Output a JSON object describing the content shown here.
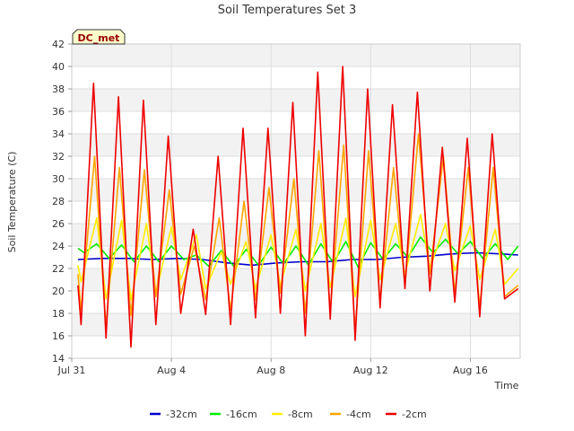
{
  "chart_data": {
    "type": "line",
    "title": "Soil Temperatures Set 3",
    "xlabel": "Time",
    "ylabel": "Soil Temperature (C)",
    "site_label": "DC_met",
    "ylim": [
      14,
      42
    ],
    "y_ticks": [
      14,
      16,
      18,
      20,
      22,
      24,
      26,
      28,
      30,
      32,
      34,
      36,
      38,
      40,
      42
    ],
    "x_range": [
      "2023-07-31",
      "2023-08-18"
    ],
    "x_ticks": [
      {
        "date": "2023-07-31",
        "label": "Jul 31"
      },
      {
        "date": "2023-08-04",
        "label": "Aug 4"
      },
      {
        "date": "2023-08-08",
        "label": "Aug 8"
      },
      {
        "date": "2023-08-12",
        "label": "Aug 12"
      },
      {
        "date": "2023-08-16",
        "label": "Aug 16"
      }
    ],
    "grid": true,
    "banded_background": true,
    "legend_position": "bottom",
    "colors": {
      "-32cm": "#0000cc",
      "-16cm": "#00ee00",
      "-8cm": "#ffee00",
      "-4cm": "#ffa500",
      "-2cm": "#ee0000"
    },
    "series": [
      {
        "name": "-32cm",
        "color": "#0000cc",
        "points": [
          [
            "2023-07-31T06:00",
            22.8
          ],
          [
            "2023-08-01T06:00",
            22.9
          ],
          [
            "2023-08-02T06:00",
            22.9
          ],
          [
            "2023-08-03T06:00",
            22.8
          ],
          [
            "2023-08-04T06:00",
            22.9
          ],
          [
            "2023-08-05T06:00",
            22.8
          ],
          [
            "2023-08-06T06:00",
            22.5
          ],
          [
            "2023-08-07T06:00",
            22.3
          ],
          [
            "2023-08-08T06:00",
            22.5
          ],
          [
            "2023-08-09T06:00",
            22.6
          ],
          [
            "2023-08-10T06:00",
            22.6
          ],
          [
            "2023-08-11T06:00",
            22.8
          ],
          [
            "2023-08-12T06:00",
            22.8
          ],
          [
            "2023-08-13T06:00",
            23.0
          ],
          [
            "2023-08-14T06:00",
            23.1
          ],
          [
            "2023-08-15T06:00",
            23.3
          ],
          [
            "2023-08-16T06:00",
            23.4
          ],
          [
            "2023-08-17T06:00",
            23.3
          ],
          [
            "2023-08-17T22:00",
            23.2
          ]
        ]
      },
      {
        "name": "-16cm",
        "color": "#00ee00",
        "points": [
          [
            "2023-07-31T06:00",
            23.8
          ],
          [
            "2023-07-31T12:00",
            23.4
          ],
          [
            "2023-08-01T00:00",
            24.2
          ],
          [
            "2023-08-01T12:00",
            22.9
          ],
          [
            "2023-08-02T00:00",
            24.1
          ],
          [
            "2023-08-02T12:00",
            22.6
          ],
          [
            "2023-08-03T00:00",
            24.0
          ],
          [
            "2023-08-03T12:00",
            22.6
          ],
          [
            "2023-08-04T00:00",
            24.0
          ],
          [
            "2023-08-04T12:00",
            22.8
          ],
          [
            "2023-08-05T00:00",
            23.2
          ],
          [
            "2023-08-05T12:00",
            22.2
          ],
          [
            "2023-08-06T00:00",
            23.6
          ],
          [
            "2023-08-06T12:00",
            22.2
          ],
          [
            "2023-08-07T00:00",
            23.7
          ],
          [
            "2023-08-07T12:00",
            22.3
          ],
          [
            "2023-08-08T00:00",
            23.9
          ],
          [
            "2023-08-08T12:00",
            22.4
          ],
          [
            "2023-08-09T00:00",
            24.0
          ],
          [
            "2023-08-09T12:00",
            22.3
          ],
          [
            "2023-08-10T00:00",
            24.2
          ],
          [
            "2023-08-10T12:00",
            22.5
          ],
          [
            "2023-08-11T00:00",
            24.4
          ],
          [
            "2023-08-11T12:00",
            22.1
          ],
          [
            "2023-08-12T00:00",
            24.3
          ],
          [
            "2023-08-12T12:00",
            22.8
          ],
          [
            "2023-08-13T00:00",
            24.2
          ],
          [
            "2023-08-13T12:00",
            23.0
          ],
          [
            "2023-08-14T00:00",
            24.8
          ],
          [
            "2023-08-14T12:00",
            23.4
          ],
          [
            "2023-08-15T00:00",
            24.6
          ],
          [
            "2023-08-15T12:00",
            23.3
          ],
          [
            "2023-08-16T00:00",
            24.4
          ],
          [
            "2023-08-16T12:00",
            22.9
          ],
          [
            "2023-08-17T00:00",
            24.2
          ],
          [
            "2023-08-17T12:00",
            22.8
          ],
          [
            "2023-08-17T22:00",
            24.0
          ]
        ]
      },
      {
        "name": "-8cm",
        "color": "#ffee00",
        "points": [
          [
            "2023-07-31T06:00",
            22.3
          ],
          [
            "2023-07-31T09:00",
            20.8
          ],
          [
            "2023-08-01T00:00",
            26.5
          ],
          [
            "2023-08-01T09:00",
            19.3
          ],
          [
            "2023-08-02T00:00",
            26.3
          ],
          [
            "2023-08-02T09:00",
            19.2
          ],
          [
            "2023-08-03T00:00",
            26.0
          ],
          [
            "2023-08-03T09:00",
            19.8
          ],
          [
            "2023-08-04T00:00",
            25.7
          ],
          [
            "2023-08-04T09:00",
            21.0
          ],
          [
            "2023-08-05T00:00",
            25.0
          ],
          [
            "2023-08-05T09:00",
            20.2
          ],
          [
            "2023-08-06T00:00",
            23.5
          ],
          [
            "2023-08-06T09:00",
            20.6
          ],
          [
            "2023-08-07T00:00",
            24.4
          ],
          [
            "2023-08-07T09:00",
            20.2
          ],
          [
            "2023-08-08T00:00",
            25.0
          ],
          [
            "2023-08-08T09:00",
            20.5
          ],
          [
            "2023-08-09T00:00",
            25.5
          ],
          [
            "2023-08-09T09:00",
            20.0
          ],
          [
            "2023-08-10T00:00",
            26.0
          ],
          [
            "2023-08-10T09:00",
            20.3
          ],
          [
            "2023-08-11T00:00",
            26.5
          ],
          [
            "2023-08-11T09:00",
            19.5
          ],
          [
            "2023-08-12T00:00",
            26.3
          ],
          [
            "2023-08-12T09:00",
            21.0
          ],
          [
            "2023-08-13T00:00",
            26.0
          ],
          [
            "2023-08-13T09:00",
            21.5
          ],
          [
            "2023-08-14T00:00",
            26.8
          ],
          [
            "2023-08-14T09:00",
            22.0
          ],
          [
            "2023-08-15T00:00",
            26.0
          ],
          [
            "2023-08-15T09:00",
            21.8
          ],
          [
            "2023-08-16T00:00",
            25.8
          ],
          [
            "2023-08-16T09:00",
            21.0
          ],
          [
            "2023-08-17T00:00",
            25.5
          ],
          [
            "2023-08-17T09:00",
            20.6
          ],
          [
            "2023-08-17T22:00",
            22.0
          ]
        ]
      },
      {
        "name": "-4cm",
        "color": "#ffa500",
        "points": [
          [
            "2023-07-31T06:00",
            21.5
          ],
          [
            "2023-07-31T09:00",
            18.3
          ],
          [
            "2023-07-31T22:00",
            32.0
          ],
          [
            "2023-08-01T09:00",
            16.8
          ],
          [
            "2023-08-01T22:00",
            31.0
          ],
          [
            "2023-08-02T09:00",
            17.8
          ],
          [
            "2023-08-02T22:00",
            30.8
          ],
          [
            "2023-08-03T09:00",
            19.5
          ],
          [
            "2023-08-03T22:00",
            29.0
          ],
          [
            "2023-08-04T09:00",
            19.7
          ],
          [
            "2023-08-04T22:00",
            24.0
          ],
          [
            "2023-08-05T09:00",
            19.2
          ],
          [
            "2023-08-05T22:00",
            26.5
          ],
          [
            "2023-08-06T09:00",
            18.3
          ],
          [
            "2023-08-06T22:00",
            28.0
          ],
          [
            "2023-08-07T09:00",
            19.2
          ],
          [
            "2023-08-07T22:00",
            29.2
          ],
          [
            "2023-08-08T09:00",
            19.8
          ],
          [
            "2023-08-08T22:00",
            30.0
          ],
          [
            "2023-08-09T09:00",
            18.0
          ],
          [
            "2023-08-09T22:00",
            32.5
          ],
          [
            "2023-08-10T09:00",
            18.2
          ],
          [
            "2023-08-10T22:00",
            33.0
          ],
          [
            "2023-08-11T09:00",
            16.5
          ],
          [
            "2023-08-11T22:00",
            32.5
          ],
          [
            "2023-08-12T09:00",
            19.0
          ],
          [
            "2023-08-12T22:00",
            31.0
          ],
          [
            "2023-08-13T09:00",
            20.5
          ],
          [
            "2023-08-13T22:00",
            34.0
          ],
          [
            "2023-08-14T09:00",
            21.5
          ],
          [
            "2023-08-14T22:00",
            32.0
          ],
          [
            "2023-08-15T09:00",
            19.8
          ],
          [
            "2023-08-15T22:00",
            31.0
          ],
          [
            "2023-08-16T09:00",
            18.5
          ],
          [
            "2023-08-16T22:00",
            31.0
          ],
          [
            "2023-08-17T09:00",
            19.5
          ],
          [
            "2023-08-17T22:00",
            20.5
          ]
        ]
      },
      {
        "name": "-2cm",
        "color": "#ee0000",
        "points": [
          [
            "2023-07-31T06:00",
            20.5
          ],
          [
            "2023-07-31T09:00",
            17.0
          ],
          [
            "2023-07-31T21:00",
            38.5
          ],
          [
            "2023-08-01T09:00",
            15.8
          ],
          [
            "2023-08-01T21:00",
            37.3
          ],
          [
            "2023-08-02T09:00",
            15.0
          ],
          [
            "2023-08-02T21:00",
            37.0
          ],
          [
            "2023-08-03T09:00",
            17.0
          ],
          [
            "2023-08-03T21:00",
            33.8
          ],
          [
            "2023-08-04T09:00",
            18.0
          ],
          [
            "2023-08-04T21:00",
            25.5
          ],
          [
            "2023-08-05T09:00",
            17.9
          ],
          [
            "2023-08-05T21:00",
            32.0
          ],
          [
            "2023-08-06T09:00",
            17.0
          ],
          [
            "2023-08-06T21:00",
            34.5
          ],
          [
            "2023-08-07T09:00",
            17.6
          ],
          [
            "2023-08-07T21:00",
            34.5
          ],
          [
            "2023-08-08T09:00",
            18.0
          ],
          [
            "2023-08-08T21:00",
            36.8
          ],
          [
            "2023-08-09T09:00",
            16.0
          ],
          [
            "2023-08-09T21:00",
            39.5
          ],
          [
            "2023-08-10T09:00",
            17.5
          ],
          [
            "2023-08-10T21:00",
            40.0
          ],
          [
            "2023-08-11T09:00",
            15.6
          ],
          [
            "2023-08-11T21:00",
            38.0
          ],
          [
            "2023-08-12T09:00",
            18.5
          ],
          [
            "2023-08-12T21:00",
            36.6
          ],
          [
            "2023-08-13T09:00",
            20.2
          ],
          [
            "2023-08-13T21:00",
            37.7
          ],
          [
            "2023-08-14T09:00",
            20.0
          ],
          [
            "2023-08-14T21:00",
            32.8
          ],
          [
            "2023-08-15T09:00",
            19.0
          ],
          [
            "2023-08-15T21:00",
            33.6
          ],
          [
            "2023-08-16T09:00",
            17.7
          ],
          [
            "2023-08-16T21:00",
            34.0
          ],
          [
            "2023-08-17T09:00",
            19.3
          ],
          [
            "2023-08-17T22:00",
            20.2
          ]
        ]
      }
    ]
  }
}
